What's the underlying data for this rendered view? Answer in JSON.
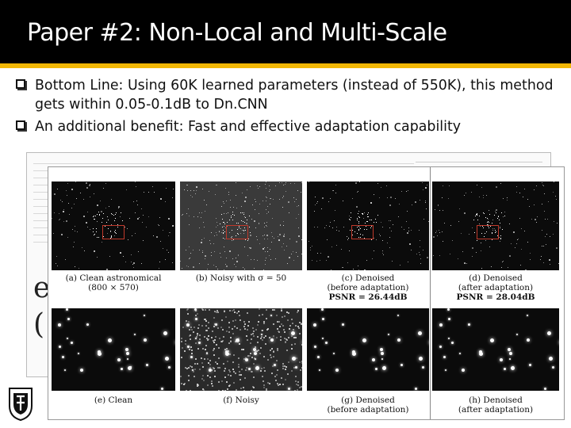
{
  "slide": {
    "title": "Paper #2: Non-Local and Multi-Scale",
    "accent_color": "#f2b705",
    "bullets": [
      "Bottom Line: Using 60K learned parameters (instead of 550K), this method gets within 0.05-0.1dB to Dn.CNN",
      "An additional benefit: Fast and effective adaptation capability"
    ]
  },
  "figure": {
    "top_row": [
      {
        "line1": "(a) Clean astronomical",
        "line2": "(800 × 570)",
        "line3": ""
      },
      {
        "line1": "(b) Noisy with σ = 50",
        "line2": "",
        "line3": ""
      },
      {
        "line1": "(c) Denoised",
        "line2": "(before adaptation)",
        "line3": "PSNR = 26.44dB"
      },
      {
        "line1": "(d) Denoised",
        "line2": "(after adaptation)",
        "line3": "PSNR = 28.04dB"
      }
    ],
    "bottom_row": [
      {
        "line1": "(e) Clean",
        "line2": ""
      },
      {
        "line1": "(f) Noisy",
        "line2": ""
      },
      {
        "line1": "(g) Denoised",
        "line2": "(before adaptation)"
      },
      {
        "line1": "(h) Denoised",
        "line2": "(after adaptation)"
      }
    ]
  },
  "paper_glyphs": [
    "e",
    "("
  ]
}
